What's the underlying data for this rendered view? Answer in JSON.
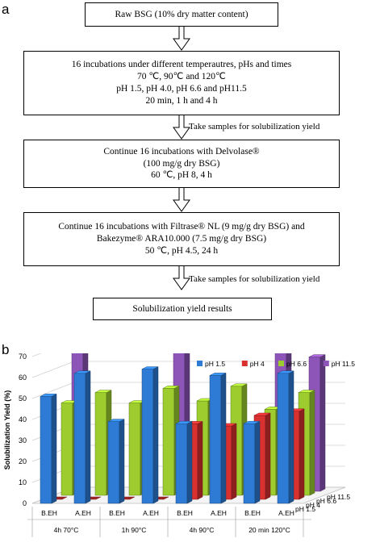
{
  "panel_a": {
    "label": "a",
    "steps": [
      {
        "lines": [
          "Raw BSG (10% dry matter content)"
        ]
      },
      {
        "lines": [
          "16 incubations under different temperautres, pHs and times",
          "70 ℃, 90℃ and 120℃",
          "pH 1.5, pH 4.0, pH 6.6 and pH11.5",
          "20 min, 1 h and 4 h"
        ]
      },
      {
        "lines": [
          "Continue 16 incubations with Delvolase®",
          "(100 mg/g dry BSG)",
          "60 ℃, pH 8, 4 h"
        ]
      },
      {
        "lines": [
          "Continue 16 incubations with Filtrase® NL (9 mg/g dry BSG) and",
          "Bakezyme® ARA10.000 (7.5 mg/g dry BSG)",
          "50 ℃, pH 4.5, 24 h"
        ]
      },
      {
        "lines": [
          "Solubilization yield results"
        ]
      }
    ],
    "arrow_notes": [
      "Take samples for solubilization yield",
      "Take samples for solubilization yield"
    ]
  },
  "panel_b": {
    "label": "b"
  },
  "chart_data": {
    "type": "bar",
    "subtype": "3d-grouped",
    "ylabel": "Solubilization Yield (%)",
    "ylim": [
      0,
      70
    ],
    "yticks": [
      0,
      10,
      20,
      30,
      40,
      50,
      60,
      70
    ],
    "grid": true,
    "legend_position": "top-right",
    "categories": [
      "B.EH",
      "A.EH",
      "B.EH",
      "A.EH",
      "B.EH",
      "A.EH",
      "B.EH",
      "A.EH"
    ],
    "groups": [
      {
        "label": "4h 70°C",
        "span": [
          0,
          1
        ]
      },
      {
        "label": "1h 90°C",
        "span": [
          2,
          3
        ]
      },
      {
        "label": "4h 90°C",
        "span": [
          4,
          5
        ]
      },
      {
        "label": "20 min 120°C",
        "span": [
          6,
          7
        ]
      }
    ],
    "depth_labels": [
      "pH 1.5",
      "pH 4",
      "pH 6.6",
      "pH 11.5"
    ],
    "series": [
      {
        "name": "pH 1.5",
        "color": "#2e7bd6",
        "values": [
          51,
          62,
          39,
          64,
          38,
          61,
          38,
          62
        ]
      },
      {
        "name": "pH 4",
        "color": "#d93030",
        "values": [
          0,
          0,
          0,
          0,
          36,
          35,
          40,
          42
        ]
      },
      {
        "name": "pH 6.6",
        "color": "#9ccc2e",
        "values": [
          44,
          49,
          44,
          51,
          45,
          52,
          41,
          49
        ]
      },
      {
        "name": "pH 11.5",
        "color": "#8e55b8",
        "values": [
          66,
          0,
          0,
          69,
          0,
          0,
          66,
          64
        ]
      }
    ]
  }
}
